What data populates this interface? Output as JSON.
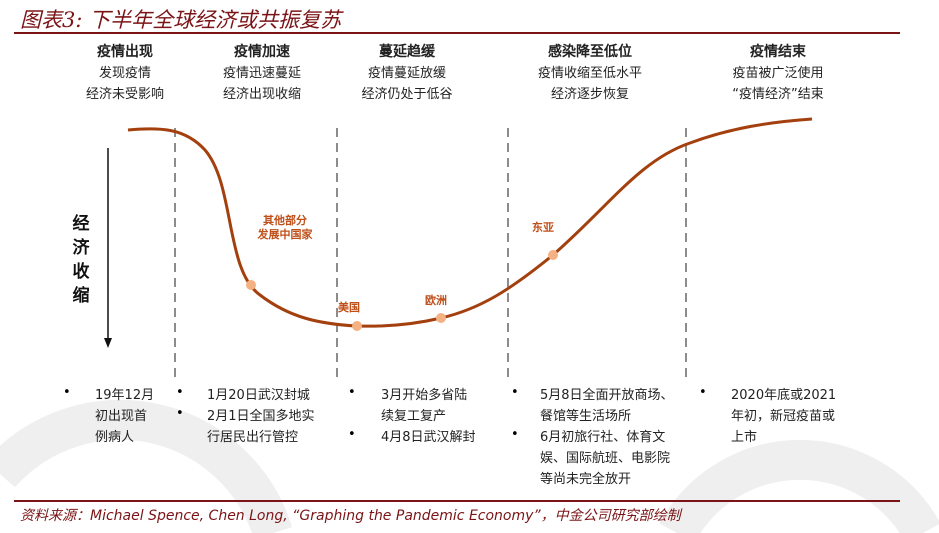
{
  "title": "图表3:  下半年全球经济或共振复苏",
  "phases": [
    {
      "heading": "疫情出现",
      "lines": [
        "发现疫情",
        "经济未受影响"
      ]
    },
    {
      "heading": "疫情加速",
      "lines": [
        "疫情迅速蔓延",
        "经济出现收缩"
      ]
    },
    {
      "heading": "蔓延趋缓",
      "lines": [
        "疫情蔓延放缓",
        "经济仍处于低谷"
      ]
    },
    {
      "heading": "感染降至低位",
      "lines": [
        "疫情收缩至低水平",
        "经济逐步恢复"
      ]
    },
    {
      "heading": "疫情结束",
      "lines": [
        "疫苗被广泛使用",
        "“疫情经济”结束"
      ]
    }
  ],
  "y_axis_label": [
    "经",
    "济",
    "收",
    "缩"
  ],
  "point_labels": {
    "developing": [
      "其他部分",
      "发展中国家"
    ],
    "us": "美国",
    "europe": "欧洲",
    "east_asia": "东亚"
  },
  "events": [
    [
      [
        "19年12月",
        "初出现首",
        "例病人"
      ]
    ],
    [
      [
        "1月20日武汉封城"
      ],
      [
        "2月1日全国多地实",
        "行居民出行管控"
      ]
    ],
    [
      [
        "3月开始多省陆",
        "续复工复产"
      ],
      [
        "4月8日武汉解封"
      ]
    ],
    [
      [
        "5月8日全面开放商场、",
        "餐馆等生活场所"
      ],
      [
        "6月初旅行社、体育文",
        "娱、国际航班、电影院",
        "等尚未完全放开"
      ]
    ],
    [
      [
        "2020年底或2021",
        "年初，新冠疫苗或",
        "上市"
      ]
    ]
  ],
  "bullet": "•",
  "source_prefix": "资料来源：",
  "source_en": "Michael Spence, Chen Long,  “Graphing the Pandemic Economy”，",
  "source_suffix": "中金公司研究部绘制",
  "colors": {
    "title": "#7b1416",
    "curve": "#a3400e",
    "point": "#f4b183",
    "label": "#c0501a",
    "divider": "#8c8c8c"
  }
}
